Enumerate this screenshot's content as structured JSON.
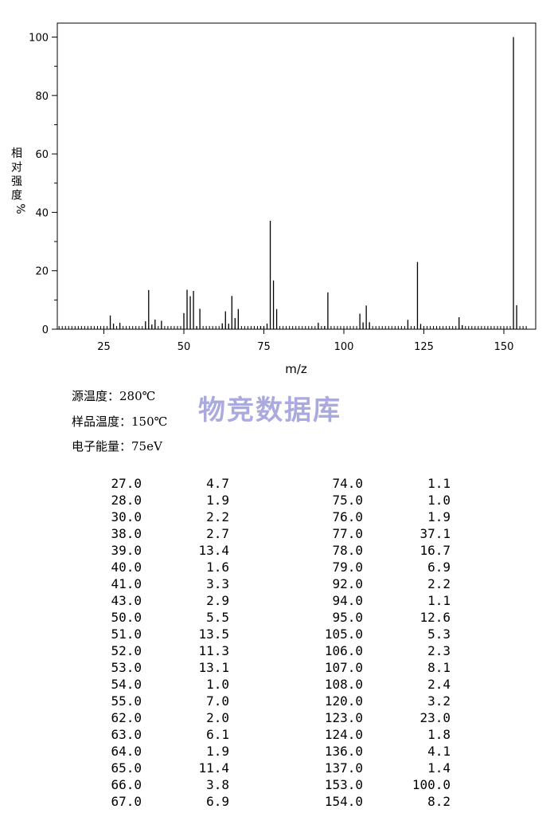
{
  "chart_data": {
    "type": "bar",
    "xlabel": "m/z",
    "ylabel": "相对强度%",
    "xlim": [
      10,
      157
    ],
    "ylim": [
      0,
      105
    ],
    "xticks": [
      25,
      50,
      75,
      100,
      125,
      150
    ],
    "yticks": [
      0,
      20,
      40,
      60,
      80,
      100
    ],
    "grid": false,
    "peaks": [
      {
        "mz": 27.0,
        "intensity": 4.7
      },
      {
        "mz": 28.0,
        "intensity": 1.9
      },
      {
        "mz": 30.0,
        "intensity": 2.2
      },
      {
        "mz": 38.0,
        "intensity": 2.7
      },
      {
        "mz": 39.0,
        "intensity": 13.4
      },
      {
        "mz": 40.0,
        "intensity": 1.6
      },
      {
        "mz": 41.0,
        "intensity": 3.3
      },
      {
        "mz": 43.0,
        "intensity": 2.9
      },
      {
        "mz": 50.0,
        "intensity": 5.5
      },
      {
        "mz": 51.0,
        "intensity": 13.5
      },
      {
        "mz": 52.0,
        "intensity": 11.3
      },
      {
        "mz": 53.0,
        "intensity": 13.1
      },
      {
        "mz": 54.0,
        "intensity": 1.0
      },
      {
        "mz": 55.0,
        "intensity": 7.0
      },
      {
        "mz": 62.0,
        "intensity": 2.0
      },
      {
        "mz": 63.0,
        "intensity": 6.1
      },
      {
        "mz": 64.0,
        "intensity": 1.9
      },
      {
        "mz": 65.0,
        "intensity": 11.4
      },
      {
        "mz": 66.0,
        "intensity": 3.8
      },
      {
        "mz": 67.0,
        "intensity": 6.9
      },
      {
        "mz": 74.0,
        "intensity": 1.1
      },
      {
        "mz": 75.0,
        "intensity": 1.0
      },
      {
        "mz": 76.0,
        "intensity": 1.9
      },
      {
        "mz": 77.0,
        "intensity": 37.1
      },
      {
        "mz": 78.0,
        "intensity": 16.7
      },
      {
        "mz": 79.0,
        "intensity": 6.9
      },
      {
        "mz": 92.0,
        "intensity": 2.2
      },
      {
        "mz": 94.0,
        "intensity": 1.1
      },
      {
        "mz": 95.0,
        "intensity": 12.6
      },
      {
        "mz": 105.0,
        "intensity": 5.3
      },
      {
        "mz": 106.0,
        "intensity": 2.3
      },
      {
        "mz": 107.0,
        "intensity": 8.1
      },
      {
        "mz": 108.0,
        "intensity": 2.4
      },
      {
        "mz": 120.0,
        "intensity": 3.2
      },
      {
        "mz": 123.0,
        "intensity": 23.0
      },
      {
        "mz": 124.0,
        "intensity": 1.8
      },
      {
        "mz": 136.0,
        "intensity": 4.1
      },
      {
        "mz": 137.0,
        "intensity": 1.4
      },
      {
        "mz": 153.0,
        "intensity": 100.0
      },
      {
        "mz": 154.0,
        "intensity": 8.2
      }
    ]
  },
  "conditions": {
    "source_temp": "源温度：280℃",
    "sample_temp": "样品温度：150℃",
    "electron_energy": "电子能量：75eV"
  },
  "watermark": "物竞数据库",
  "peak_table": {
    "left": [
      {
        "mz": "27.0",
        "intensity": "4.7"
      },
      {
        "mz": "28.0",
        "intensity": "1.9"
      },
      {
        "mz": "30.0",
        "intensity": "2.2"
      },
      {
        "mz": "38.0",
        "intensity": "2.7"
      },
      {
        "mz": "39.0",
        "intensity": "13.4"
      },
      {
        "mz": "40.0",
        "intensity": "1.6"
      },
      {
        "mz": "41.0",
        "intensity": "3.3"
      },
      {
        "mz": "43.0",
        "intensity": "2.9"
      },
      {
        "mz": "50.0",
        "intensity": "5.5"
      },
      {
        "mz": "51.0",
        "intensity": "13.5"
      },
      {
        "mz": "52.0",
        "intensity": "11.3"
      },
      {
        "mz": "53.0",
        "intensity": "13.1"
      },
      {
        "mz": "54.0",
        "intensity": "1.0"
      },
      {
        "mz": "55.0",
        "intensity": "7.0"
      },
      {
        "mz": "62.0",
        "intensity": "2.0"
      },
      {
        "mz": "63.0",
        "intensity": "6.1"
      },
      {
        "mz": "64.0",
        "intensity": "1.9"
      },
      {
        "mz": "65.0",
        "intensity": "11.4"
      },
      {
        "mz": "66.0",
        "intensity": "3.8"
      },
      {
        "mz": "67.0",
        "intensity": "6.9"
      }
    ],
    "right": [
      {
        "mz": "74.0",
        "intensity": "1.1"
      },
      {
        "mz": "75.0",
        "intensity": "1.0"
      },
      {
        "mz": "76.0",
        "intensity": "1.9"
      },
      {
        "mz": "77.0",
        "intensity": "37.1"
      },
      {
        "mz": "78.0",
        "intensity": "16.7"
      },
      {
        "mz": "79.0",
        "intensity": "6.9"
      },
      {
        "mz": "92.0",
        "intensity": "2.2"
      },
      {
        "mz": "94.0",
        "intensity": "1.1"
      },
      {
        "mz": "95.0",
        "intensity": "12.6"
      },
      {
        "mz": "105.0",
        "intensity": "5.3"
      },
      {
        "mz": "106.0",
        "intensity": "2.3"
      },
      {
        "mz": "107.0",
        "intensity": "8.1"
      },
      {
        "mz": "108.0",
        "intensity": "2.4"
      },
      {
        "mz": "120.0",
        "intensity": "3.2"
      },
      {
        "mz": "123.0",
        "intensity": "23.0"
      },
      {
        "mz": "124.0",
        "intensity": "1.8"
      },
      {
        "mz": "136.0",
        "intensity": "4.1"
      },
      {
        "mz": "137.0",
        "intensity": "1.4"
      },
      {
        "mz": "153.0",
        "intensity": "100.0"
      },
      {
        "mz": "154.0",
        "intensity": "8.2"
      }
    ]
  }
}
